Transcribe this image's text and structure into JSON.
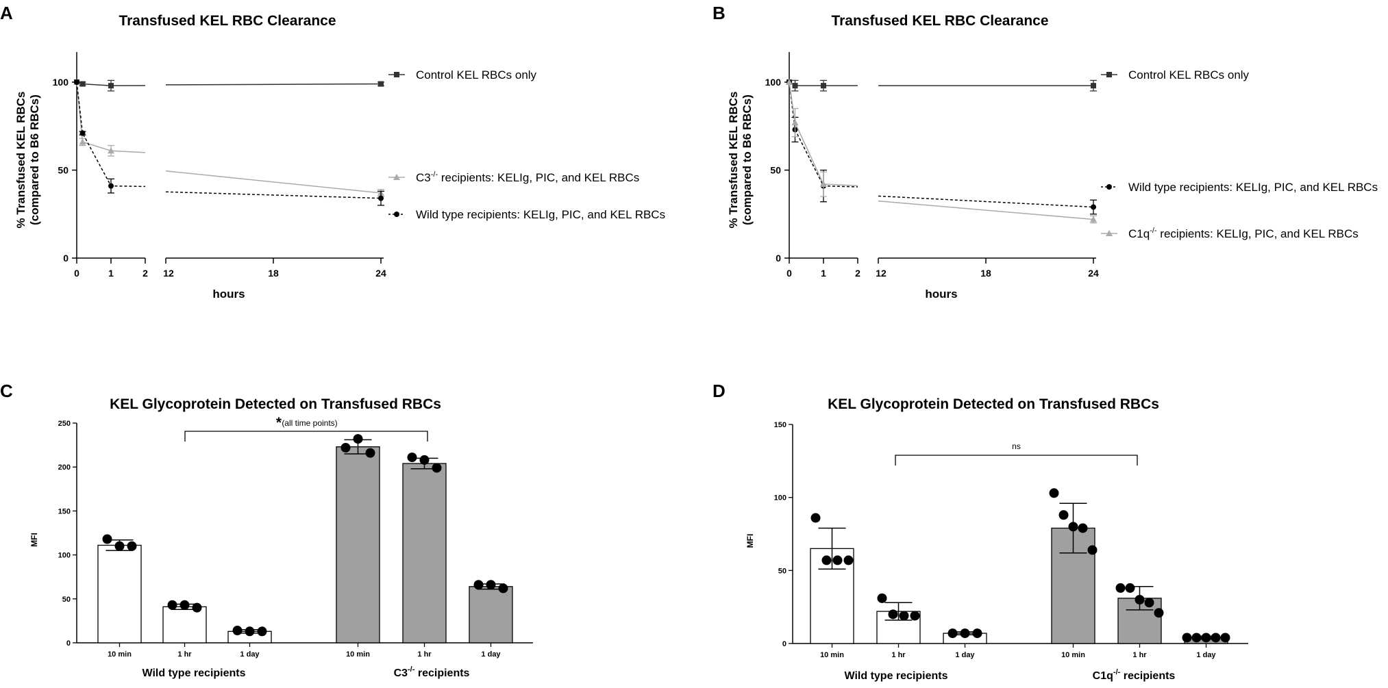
{
  "chart_data": [
    {
      "panel": "A",
      "type": "line",
      "title": "Transfused  KEL RBC Clearance",
      "xlabel": "hours",
      "ylabel": [
        "% Transfused KEL RBCs",
        "(compared to B6 RBCs)"
      ],
      "yticks": [
        0,
        50,
        100
      ],
      "xticks_left": [
        0,
        1,
        2
      ],
      "xticks_right": [
        12,
        18,
        24
      ],
      "series": [
        {
          "name": "Control KEL RBCs only",
          "marker": "square",
          "style": "solid",
          "color": "#333333",
          "x": [
            0,
            0.17,
            1,
            24
          ],
          "y": [
            100,
            99,
            98,
            99
          ],
          "err": [
            0,
            1,
            3,
            1
          ]
        },
        {
          "name": "C3 recipients: KELIg, PIC, and KEL RBCs",
          "name_prefix": "C3",
          "name_sup": "-/-",
          "name_suffix": " recipients: KELIg, PIC, and KEL RBCs",
          "marker": "triangle",
          "style": "solid",
          "color": "#aaaaaa",
          "x": [
            0,
            0.17,
            1,
            24
          ],
          "y": [
            100,
            66,
            61,
            37
          ],
          "err": [
            0,
            2,
            3,
            2
          ]
        },
        {
          "name": "Wild type recipients: KELIg, PIC, and KEL RBCs",
          "name_prefix": "Wild type recipients: KELIg, PIC, and KEL RBCs",
          "name_sup": "",
          "name_suffix": "",
          "marker": "circle",
          "style": "dashed",
          "color": "#000000",
          "x": [
            0,
            0.17,
            1,
            24
          ],
          "y": [
            100,
            71,
            41,
            34
          ],
          "err": [
            0,
            1,
            4,
            4
          ]
        }
      ]
    },
    {
      "panel": "B",
      "type": "line",
      "title": "Transfused  KEL RBC Clearance",
      "xlabel": "hours",
      "ylabel": [
        "% Transfused KEL RBCs",
        "(compared to B6 RBCs)"
      ],
      "yticks": [
        0,
        50,
        100
      ],
      "xticks_left": [
        0,
        1,
        2
      ],
      "xticks_right": [
        12,
        18,
        24
      ],
      "series": [
        {
          "name": "Control KEL RBCs only",
          "marker": "square",
          "style": "solid",
          "color": "#333333",
          "x": [
            0,
            0.17,
            1,
            24
          ],
          "y": [
            100,
            98,
            98,
            98
          ],
          "err": [
            0,
            3,
            3,
            3
          ]
        },
        {
          "name": "Wild type recipients: KELIg, PIC, and KEL RBCs",
          "name_prefix": "Wild type recipients: KELIg, PIC, and KEL RBCs",
          "name_sup": "",
          "name_suffix": "",
          "marker": "circle",
          "style": "dashed",
          "color": "#000000",
          "x": [
            0,
            0.17,
            1,
            24
          ],
          "y": [
            100,
            73,
            41,
            29
          ],
          "err": [
            0,
            7,
            9,
            4
          ]
        },
        {
          "name": "C1q recipients: KELIg, PIC, and KEL RBCs",
          "name_prefix": "C1q",
          "name_sup": "-/-",
          "name_suffix": " recipients: KELIg, PIC, and KEL RBCs",
          "marker": "triangle",
          "style": "solid",
          "color": "#aaaaaa",
          "x": [
            0,
            0.17,
            1,
            24
          ],
          "y": [
            100,
            77,
            42,
            22
          ],
          "err": [
            0,
            8,
            7,
            2
          ]
        }
      ]
    },
    {
      "panel": "C",
      "type": "bar",
      "title": "KEL Glycoprotein Detected on Transfused RBCs",
      "ylabel": "MFI",
      "ylim": [
        0,
        250
      ],
      "yticks": [
        0,
        50,
        100,
        150,
        200,
        250
      ],
      "significance": "(all time points)",
      "significance_mark": "*",
      "groups": [
        {
          "label": "Wild type recipients",
          "label_prefix": "Wild type recipients",
          "label_sup": "",
          "label_suffix": "",
          "fill": "#ffffff",
          "bars": [
            {
              "category": "10 min",
              "value": 111,
              "err": 6,
              "points": [
                118,
                110,
                110
              ]
            },
            {
              "category": "1 hr",
              "value": 41,
              "err": 3,
              "points": [
                43,
                43,
                40
              ]
            },
            {
              "category": "1 day",
              "value": 13,
              "err": 2,
              "points": [
                14,
                13,
                13
              ]
            }
          ]
        },
        {
          "label": "C3 recipients",
          "label_prefix": "C3",
          "label_sup": "-/-",
          "label_suffix": " recipients",
          "fill": "#a0a0a0",
          "bars": [
            {
              "category": "10 min",
              "value": 223,
              "err": 8,
              "points": [
                222,
                232,
                216
              ]
            },
            {
              "category": "1 hr",
              "value": 204,
              "err": 6,
              "points": [
                211,
                208,
                199
              ]
            },
            {
              "category": "1 day",
              "value": 64,
              "err": 3,
              "points": [
                66,
                66,
                62
              ]
            }
          ]
        }
      ]
    },
    {
      "panel": "D",
      "type": "bar",
      "title": "KEL Glycoprotein Detected on Transfused RBCs",
      "ylabel": "MFI",
      "ylim": [
        0,
        150
      ],
      "yticks": [
        0,
        50,
        100,
        150
      ],
      "significance": "ns",
      "significance_mark": "",
      "groups": [
        {
          "label": "Wild type recipients",
          "label_prefix": "Wild type recipients",
          "label_sup": "",
          "label_suffix": "",
          "fill": "#ffffff",
          "bars": [
            {
              "category": "10 min",
              "value": 65,
              "err": 14,
              "points": [
                86,
                57,
                57,
                57
              ]
            },
            {
              "category": "1 hr",
              "value": 22,
              "err": 6,
              "points": [
                31,
                20,
                19,
                19
              ]
            },
            {
              "category": "1 day",
              "value": 7,
              "err": 1,
              "points": [
                7,
                7,
                7
              ]
            }
          ]
        },
        {
          "label": "C1q recipients",
          "label_prefix": "C1q",
          "label_sup": "-/-",
          "label_suffix": " recipients",
          "fill": "#a0a0a0",
          "bars": [
            {
              "category": "10 min",
              "value": 79,
              "err": 17,
              "points": [
                103,
                88,
                80,
                79,
                64
              ]
            },
            {
              "category": "1 hr",
              "value": 31,
              "err": 8,
              "points": [
                38,
                38,
                30,
                28,
                21
              ]
            },
            {
              "category": "1 day",
              "value": 4,
              "err": 1,
              "points": [
                4,
                4,
                4,
                4,
                4
              ]
            }
          ]
        }
      ]
    }
  ]
}
